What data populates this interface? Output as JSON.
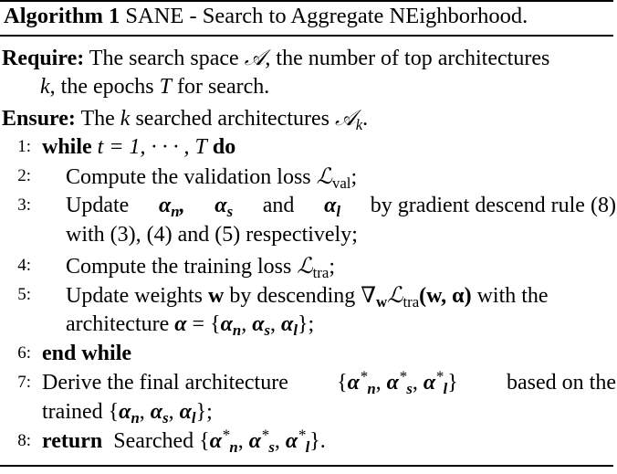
{
  "title": {
    "label": "Algorithm 1",
    "text": "SANE - Search to Aggregate NEighborhood."
  },
  "require": {
    "label": "Require:",
    "line1_a": "The search space",
    "line1_sym": "𝒜",
    "line1_b": ", the number of top architectures",
    "line2_k": "k",
    "line2_a": ", the epochs",
    "line2_T": "T",
    "line2_b": "for search."
  },
  "ensure": {
    "label": "Ensure:",
    "text_a": "The",
    "k": "k",
    "text_b": "searched architectures",
    "sym": "𝒜",
    "sub": "k",
    "end": "."
  },
  "steps": {
    "s1": {
      "num": "1:",
      "kw_while": "while",
      "expr": "t = 1, · · · , T",
      "kw_do": "do"
    },
    "s2": {
      "num": "2:",
      "text": "Compute the validation loss",
      "sym": "ℒ",
      "sub": "val",
      "end": ";"
    },
    "s3": {
      "num": "3:",
      "text_a": "Update",
      "and": "and",
      "text_b": "by gradient descend rule (8)",
      "line2": "with (3), (4) and (5) respectively;"
    },
    "s4": {
      "num": "4:",
      "text": "Compute the training loss",
      "sym": "ℒ",
      "sub": "tra",
      "end": ";"
    },
    "s5": {
      "num": "5:",
      "text_a": "Update weights",
      "w": "w",
      "text_b": "by descending",
      "grad": "∇",
      "gsub": "w",
      "sym": "ℒ",
      "sub": "tra",
      "args": "(w, α)",
      "text_c": "with the",
      "line2": "architecture"
    },
    "s6": {
      "num": "6:",
      "kw": "end while"
    },
    "s7": {
      "num": "7:",
      "text_a": "Derive the final architecture",
      "text_b": "based on the",
      "line2": "trained"
    },
    "s8": {
      "num": "8:",
      "kw": "return",
      "text": "Searched"
    }
  }
}
